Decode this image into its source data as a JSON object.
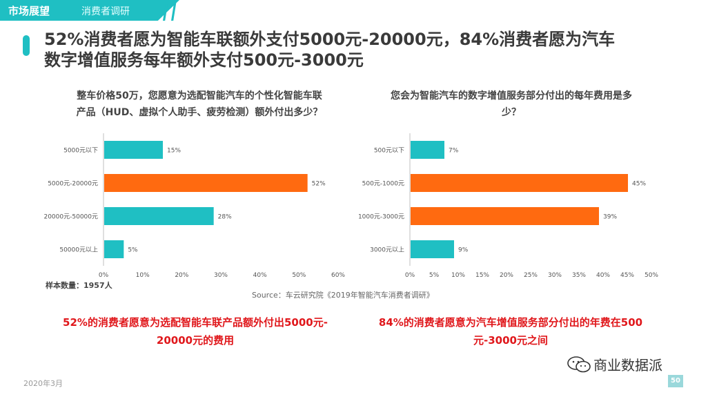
{
  "header": {
    "section": "市场展望",
    "subsection": "消费者调研"
  },
  "title_line1": "52%消费者愿为智能车联额外支付5000元-20000元，84%消费者愿为汽车",
  "title_line2": "数字增值服务每年额外支付500元-3000元",
  "left": {
    "question_line1": "整车价格50万，您愿意为选配智能汽车的个性化智能车联",
    "question_line2": "产品（HUD、虚拟个人助手、疲劳检测）额外付出多少？",
    "conclusion_line1": "52%的消费者愿意为选配智能车联产品额外付出5000元-",
    "conclusion_line2": "20000元的费用"
  },
  "right": {
    "question_line1": "您会为智能汽车的数字增值服务部分付出的每年费用是多",
    "question_line2": "少？",
    "conclusion_line1": "84%的消费者愿意为汽车增值服务部分付出的年费在500",
    "conclusion_line2": "元-3000元之间"
  },
  "chart_data": [
    {
      "type": "bar",
      "orientation": "horizontal",
      "categories": [
        "5000元以下",
        "5000元-20000元",
        "20000元-50000元",
        "50000元以上"
      ],
      "values": [
        15,
        52,
        28,
        5
      ],
      "value_labels": [
        "15%",
        "52%",
        "28%",
        "5%"
      ],
      "colors": [
        "#1fbfc3",
        "#ff6a10",
        "#1fbfc3",
        "#1fbfc3"
      ],
      "xticks": [
        "0%",
        "10%",
        "20%",
        "30%",
        "40%",
        "50%",
        "60%"
      ],
      "xlim": [
        0,
        60
      ]
    },
    {
      "type": "bar",
      "orientation": "horizontal",
      "categories": [
        "500元以下",
        "500元-1000元",
        "1000元-3000元",
        "3000元以上"
      ],
      "values": [
        7,
        45,
        39,
        9
      ],
      "value_labels": [
        "7%",
        "45%",
        "39%",
        "9%"
      ],
      "colors": [
        "#1fbfc3",
        "#ff6a10",
        "#ff6a10",
        "#1fbfc3"
      ],
      "xticks": [
        "0%",
        "5%",
        "10%",
        "15%",
        "20%",
        "25%",
        "30%",
        "35%",
        "40%",
        "45%",
        "50%"
      ],
      "xlim": [
        0,
        50
      ]
    }
  ],
  "sample": "样本数量：1957人",
  "source": "Source：车云研究院《2019年智能汽车消费者调研》",
  "footer": {
    "date": "2020年3月",
    "brand": "商业数据派",
    "page": "50"
  }
}
